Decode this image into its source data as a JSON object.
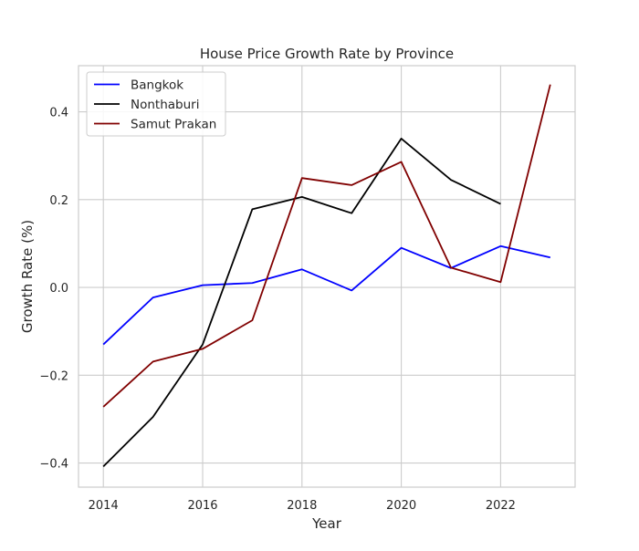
{
  "chart_data": {
    "type": "line",
    "title": "House Price Growth Rate by Province",
    "xlabel": "Year",
    "ylabel": "Growth Rate (%)",
    "xlim": [
      2013.5,
      2023.5
    ],
    "ylim": [
      -0.455,
      0.505
    ],
    "x_ticks": [
      2014,
      2016,
      2018,
      2020,
      2022
    ],
    "x_tick_labels": [
      "2014",
      "2016",
      "2018",
      "2020",
      "2022"
    ],
    "y_ticks": [
      -0.4,
      -0.2,
      0.0,
      0.2,
      0.4
    ],
    "y_tick_labels": [
      "−0.4",
      "−0.2",
      "0.0",
      "0.2",
      "0.4"
    ],
    "grid": true,
    "legend_position": "top-left",
    "series": [
      {
        "name": "Bangkok",
        "color": "#0000ff",
        "x": [
          2014,
          2015,
          2016,
          2017,
          2018,
          2019,
          2020,
          2021,
          2022,
          2023
        ],
        "values": [
          -0.13,
          -0.023,
          0.005,
          0.01,
          0.041,
          -0.007,
          0.09,
          0.044,
          0.094,
          0.068
        ]
      },
      {
        "name": "Nonthaburi",
        "color": "#000000",
        "x": [
          2014,
          2015,
          2016,
          2017,
          2018,
          2019,
          2020,
          2021,
          2022
        ],
        "values": [
          -0.408,
          -0.295,
          -0.13,
          0.178,
          0.206,
          0.169,
          0.339,
          0.245,
          0.19
        ]
      },
      {
        "name": "Samut Prakan",
        "color": "#800000",
        "x": [
          2014,
          2015,
          2016,
          2017,
          2018,
          2019,
          2020,
          2021,
          2022,
          2023
        ],
        "values": [
          -0.272,
          -0.169,
          -0.14,
          -0.075,
          0.249,
          0.233,
          0.286,
          0.045,
          0.012,
          0.462
        ]
      }
    ]
  }
}
